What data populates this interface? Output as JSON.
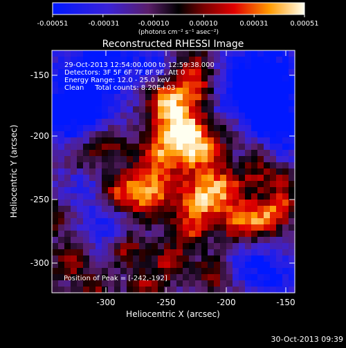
{
  "colorbar": {
    "tick_labels": [
      "-0.00051",
      "-0.00031",
      "-0.00010",
      "0.00010",
      "0.00031",
      "0.00051"
    ],
    "units_label": "(photons cm⁻² s⁻¹ asec⁻²)",
    "range": [
      -0.00051,
      0.00051
    ]
  },
  "image": {
    "title": "Reconstructed RHESSI Image",
    "x_label": "Heliocentric X (arcsec)",
    "y_label": "Heliocentric Y (arcsec)",
    "x_ticks": [
      "-300",
      "-250",
      "-200",
      "-150"
    ],
    "y_ticks": [
      "-150",
      "-200",
      "-250",
      "-300"
    ],
    "x_range": [
      -345,
      -150
    ],
    "y_range": [
      -325,
      -130
    ],
    "info_lines": [
      "29-Oct-2013 12:54:00.000 to 12:59:38.000",
      "Detectors: 3F 5F 6F 7F 8F 9F, Att 0",
      "Energy Range: 12.0 - 25.0 keV",
      "Clean     Total counts: 8.20E+03"
    ],
    "peak_label": "Position of Peak = [-242,-192]",
    "peak": [
      -242,
      -192
    ]
  },
  "timestamp": "30-Oct-2013 09:39"
}
